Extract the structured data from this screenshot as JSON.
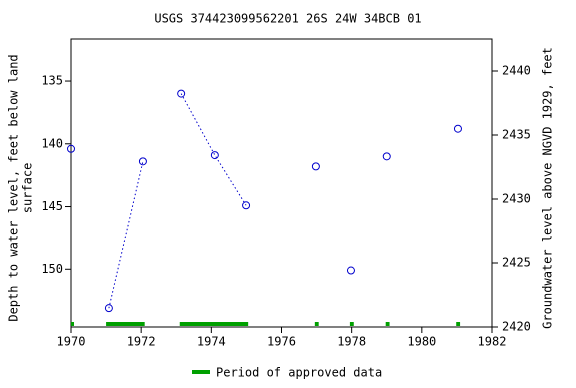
{
  "chart_data": {
    "type": "line",
    "title": "USGS 374423099562201 26S 24W 34BCB 01",
    "ylabel": [
      "Depth to water level, feet below land",
      "surface"
    ],
    "y2label": "Groundwater level above NGVD 1929, feet",
    "x": [
      1970.0,
      null,
      1971.08,
      1972.05,
      null,
      1973.14,
      1974.1,
      1974.99,
      null,
      1976.98,
      null,
      1977.98,
      null,
      1979.0,
      null,
      1981.03
    ],
    "series": [
      {
        "name": "Depth to water level",
        "color": "#0000cc",
        "values": [
          140.4,
          null,
          153.1,
          141.4,
          null,
          136.0,
          140.9,
          144.9,
          null,
          141.8,
          null,
          150.1,
          null,
          141.0,
          null,
          138.8
        ]
      }
    ],
    "xlim": [
      1970,
      1982
    ],
    "xticks": [
      1970,
      1972,
      1974,
      1976,
      1978,
      1980,
      1982
    ],
    "ylim": [
      131.65,
      154.6
    ],
    "y_inverted": true,
    "yticks": [
      135,
      140,
      145,
      150
    ],
    "y2lim": [
      2420,
      2442.5
    ],
    "y2ticks": [
      2420,
      2425,
      2430,
      2435,
      2440
    ],
    "approved": {
      "name": "Period of approved data",
      "color": "#00a000",
      "periods": [
        [
          1970.0,
          1970.06
        ],
        [
          1971.0,
          1972.1
        ],
        [
          1973.1,
          1975.05
        ],
        [
          1976.95,
          1977.06
        ],
        [
          1977.95,
          1978.06
        ],
        [
          1978.97,
          1979.08
        ],
        [
          1980.98,
          1981.09
        ]
      ]
    }
  }
}
